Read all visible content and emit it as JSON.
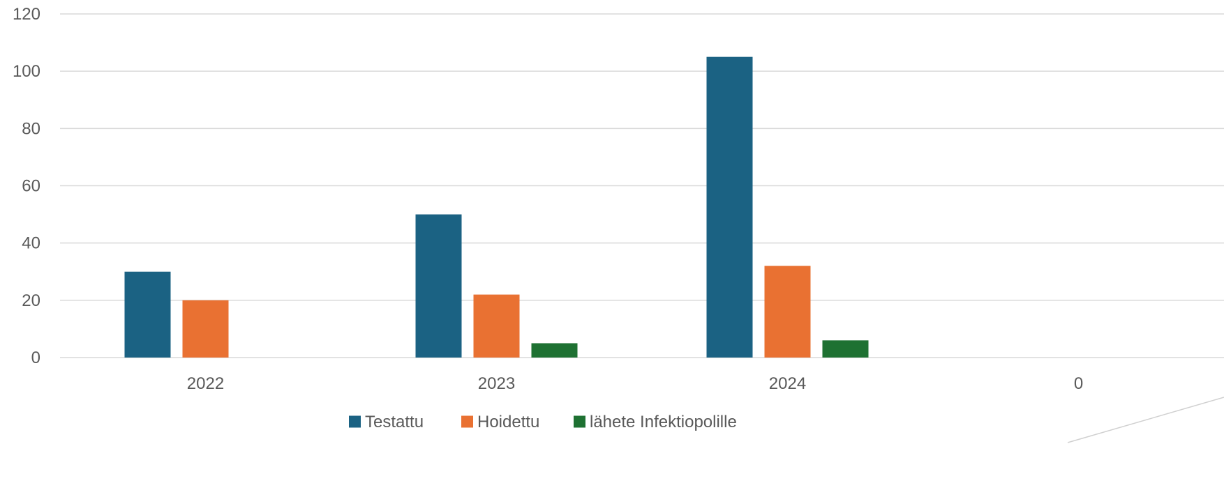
{
  "chart_data": {
    "type": "bar",
    "categories": [
      "2022",
      "2023",
      "2024",
      "0"
    ],
    "series": [
      {
        "name": "Testattu",
        "color": "#1B6283",
        "values": [
          30,
          50,
          105,
          null
        ]
      },
      {
        "name": "Hoidettu",
        "color": "#E97132",
        "values": [
          20,
          22,
          32,
          null
        ]
      },
      {
        "name": "lähete Infektiopolille",
        "color": "#1E7132",
        "values": [
          null,
          5,
          6,
          null
        ]
      }
    ],
    "ylim": [
      0,
      120
    ],
    "yticks": [
      0,
      20,
      40,
      60,
      80,
      100,
      120
    ],
    "grid": true,
    "legend": "bottom",
    "title": "",
    "xlabel": "",
    "ylabel": ""
  }
}
